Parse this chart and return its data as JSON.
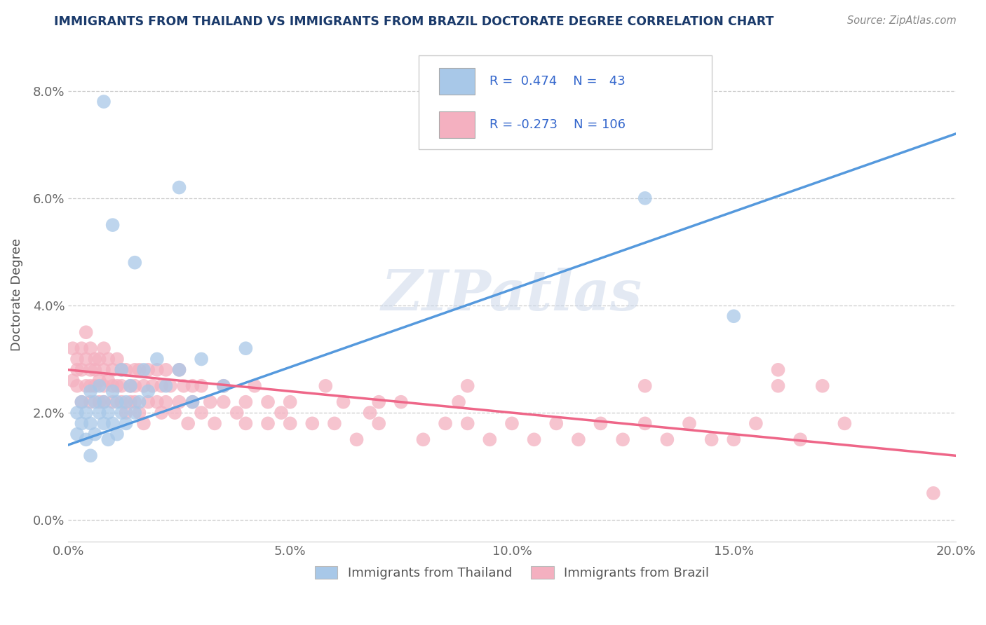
{
  "title": "IMMIGRANTS FROM THAILAND VS IMMIGRANTS FROM BRAZIL DOCTORATE DEGREE CORRELATION CHART",
  "source_text": "Source: ZipAtlas.com",
  "ylabel": "Doctorate Degree",
  "xmin": 0.0,
  "xmax": 0.2,
  "ymin": -0.004,
  "ymax": 0.088,
  "yticks": [
    0.0,
    0.02,
    0.04,
    0.06,
    0.08
  ],
  "ytick_labels": [
    "0.0%",
    "2.0%",
    "4.0%",
    "6.0%",
    "8.0%"
  ],
  "xticks": [
    0.0,
    0.05,
    0.1,
    0.15,
    0.2
  ],
  "xtick_labels": [
    "0.0%",
    "5.0%",
    "10.0%",
    "15.0%",
    "20.0%"
  ],
  "watermark": "ZIPatlas",
  "blue_color": "#a8c8e8",
  "pink_color": "#f4b0c0",
  "line_blue": "#5599dd",
  "line_pink": "#ee6688",
  "title_color": "#1a3a6b",
  "legend_color": "#3366cc",
  "blue_trend_x": [
    0.0,
    0.2
  ],
  "blue_trend_y": [
    0.014,
    0.072
  ],
  "pink_trend_x": [
    0.0,
    0.2
  ],
  "pink_trend_y": [
    0.028,
    0.012
  ],
  "thailand_scatter": [
    [
      0.002,
      0.02
    ],
    [
      0.002,
      0.016
    ],
    [
      0.003,
      0.022
    ],
    [
      0.003,
      0.018
    ],
    [
      0.004,
      0.015
    ],
    [
      0.004,
      0.02
    ],
    [
      0.005,
      0.018
    ],
    [
      0.005,
      0.024
    ],
    [
      0.005,
      0.012
    ],
    [
      0.006,
      0.022
    ],
    [
      0.006,
      0.016
    ],
    [
      0.007,
      0.02
    ],
    [
      0.007,
      0.025
    ],
    [
      0.008,
      0.018
    ],
    [
      0.008,
      0.022
    ],
    [
      0.009,
      0.015
    ],
    [
      0.009,
      0.02
    ],
    [
      0.01,
      0.018
    ],
    [
      0.01,
      0.024
    ],
    [
      0.011,
      0.016
    ],
    [
      0.011,
      0.022
    ],
    [
      0.012,
      0.02
    ],
    [
      0.012,
      0.028
    ],
    [
      0.013,
      0.022
    ],
    [
      0.013,
      0.018
    ],
    [
      0.014,
      0.025
    ],
    [
      0.015,
      0.02
    ],
    [
      0.016,
      0.022
    ],
    [
      0.017,
      0.028
    ],
    [
      0.018,
      0.024
    ],
    [
      0.02,
      0.03
    ],
    [
      0.022,
      0.025
    ],
    [
      0.025,
      0.028
    ],
    [
      0.028,
      0.022
    ],
    [
      0.03,
      0.03
    ],
    [
      0.035,
      0.025
    ],
    [
      0.04,
      0.032
    ],
    [
      0.015,
      0.048
    ],
    [
      0.025,
      0.062
    ],
    [
      0.008,
      0.078
    ],
    [
      0.15,
      0.038
    ],
    [
      0.13,
      0.06
    ],
    [
      0.01,
      0.055
    ]
  ],
  "brazil_scatter": [
    [
      0.001,
      0.032
    ],
    [
      0.001,
      0.026
    ],
    [
      0.002,
      0.03
    ],
    [
      0.002,
      0.025
    ],
    [
      0.002,
      0.028
    ],
    [
      0.003,
      0.032
    ],
    [
      0.003,
      0.028
    ],
    [
      0.003,
      0.022
    ],
    [
      0.004,
      0.03
    ],
    [
      0.004,
      0.025
    ],
    [
      0.004,
      0.035
    ],
    [
      0.005,
      0.028
    ],
    [
      0.005,
      0.025
    ],
    [
      0.005,
      0.022
    ],
    [
      0.005,
      0.032
    ],
    [
      0.006,
      0.03
    ],
    [
      0.006,
      0.025
    ],
    [
      0.006,
      0.028
    ],
    [
      0.007,
      0.026
    ],
    [
      0.007,
      0.03
    ],
    [
      0.007,
      0.022
    ],
    [
      0.008,
      0.028
    ],
    [
      0.008,
      0.025
    ],
    [
      0.008,
      0.032
    ],
    [
      0.008,
      0.022
    ],
    [
      0.009,
      0.026
    ],
    [
      0.009,
      0.03
    ],
    [
      0.01,
      0.025
    ],
    [
      0.01,
      0.028
    ],
    [
      0.01,
      0.022
    ],
    [
      0.011,
      0.025
    ],
    [
      0.011,
      0.03
    ],
    [
      0.012,
      0.028
    ],
    [
      0.012,
      0.022
    ],
    [
      0.012,
      0.025
    ],
    [
      0.013,
      0.02
    ],
    [
      0.013,
      0.028
    ],
    [
      0.014,
      0.025
    ],
    [
      0.014,
      0.022
    ],
    [
      0.015,
      0.028
    ],
    [
      0.015,
      0.022
    ],
    [
      0.015,
      0.025
    ],
    [
      0.016,
      0.02
    ],
    [
      0.016,
      0.028
    ],
    [
      0.017,
      0.025
    ],
    [
      0.017,
      0.018
    ],
    [
      0.018,
      0.022
    ],
    [
      0.018,
      0.028
    ],
    [
      0.019,
      0.025
    ],
    [
      0.02,
      0.022
    ],
    [
      0.02,
      0.028
    ],
    [
      0.021,
      0.025
    ],
    [
      0.021,
      0.02
    ],
    [
      0.022,
      0.022
    ],
    [
      0.022,
      0.028
    ],
    [
      0.023,
      0.025
    ],
    [
      0.024,
      0.02
    ],
    [
      0.025,
      0.022
    ],
    [
      0.025,
      0.028
    ],
    [
      0.026,
      0.025
    ],
    [
      0.027,
      0.018
    ],
    [
      0.028,
      0.022
    ],
    [
      0.028,
      0.025
    ],
    [
      0.03,
      0.02
    ],
    [
      0.03,
      0.025
    ],
    [
      0.032,
      0.022
    ],
    [
      0.033,
      0.018
    ],
    [
      0.035,
      0.022
    ],
    [
      0.035,
      0.025
    ],
    [
      0.038,
      0.02
    ],
    [
      0.04,
      0.022
    ],
    [
      0.04,
      0.018
    ],
    [
      0.042,
      0.025
    ],
    [
      0.045,
      0.018
    ],
    [
      0.045,
      0.022
    ],
    [
      0.048,
      0.02
    ],
    [
      0.05,
      0.018
    ],
    [
      0.05,
      0.022
    ],
    [
      0.055,
      0.018
    ],
    [
      0.058,
      0.025
    ],
    [
      0.06,
      0.018
    ],
    [
      0.062,
      0.022
    ],
    [
      0.065,
      0.015
    ],
    [
      0.068,
      0.02
    ],
    [
      0.07,
      0.018
    ],
    [
      0.075,
      0.022
    ],
    [
      0.08,
      0.015
    ],
    [
      0.085,
      0.018
    ],
    [
      0.088,
      0.022
    ],
    [
      0.09,
      0.018
    ],
    [
      0.095,
      0.015
    ],
    [
      0.1,
      0.018
    ],
    [
      0.105,
      0.015
    ],
    [
      0.11,
      0.018
    ],
    [
      0.115,
      0.015
    ],
    [
      0.12,
      0.018
    ],
    [
      0.125,
      0.015
    ],
    [
      0.13,
      0.018
    ],
    [
      0.135,
      0.015
    ],
    [
      0.14,
      0.018
    ],
    [
      0.145,
      0.015
    ],
    [
      0.15,
      0.015
    ],
    [
      0.155,
      0.018
    ],
    [
      0.16,
      0.025
    ],
    [
      0.165,
      0.015
    ],
    [
      0.17,
      0.025
    ],
    [
      0.175,
      0.018
    ],
    [
      0.09,
      0.025
    ],
    [
      0.07,
      0.022
    ],
    [
      0.13,
      0.025
    ],
    [
      0.16,
      0.028
    ],
    [
      0.195,
      0.005
    ]
  ]
}
